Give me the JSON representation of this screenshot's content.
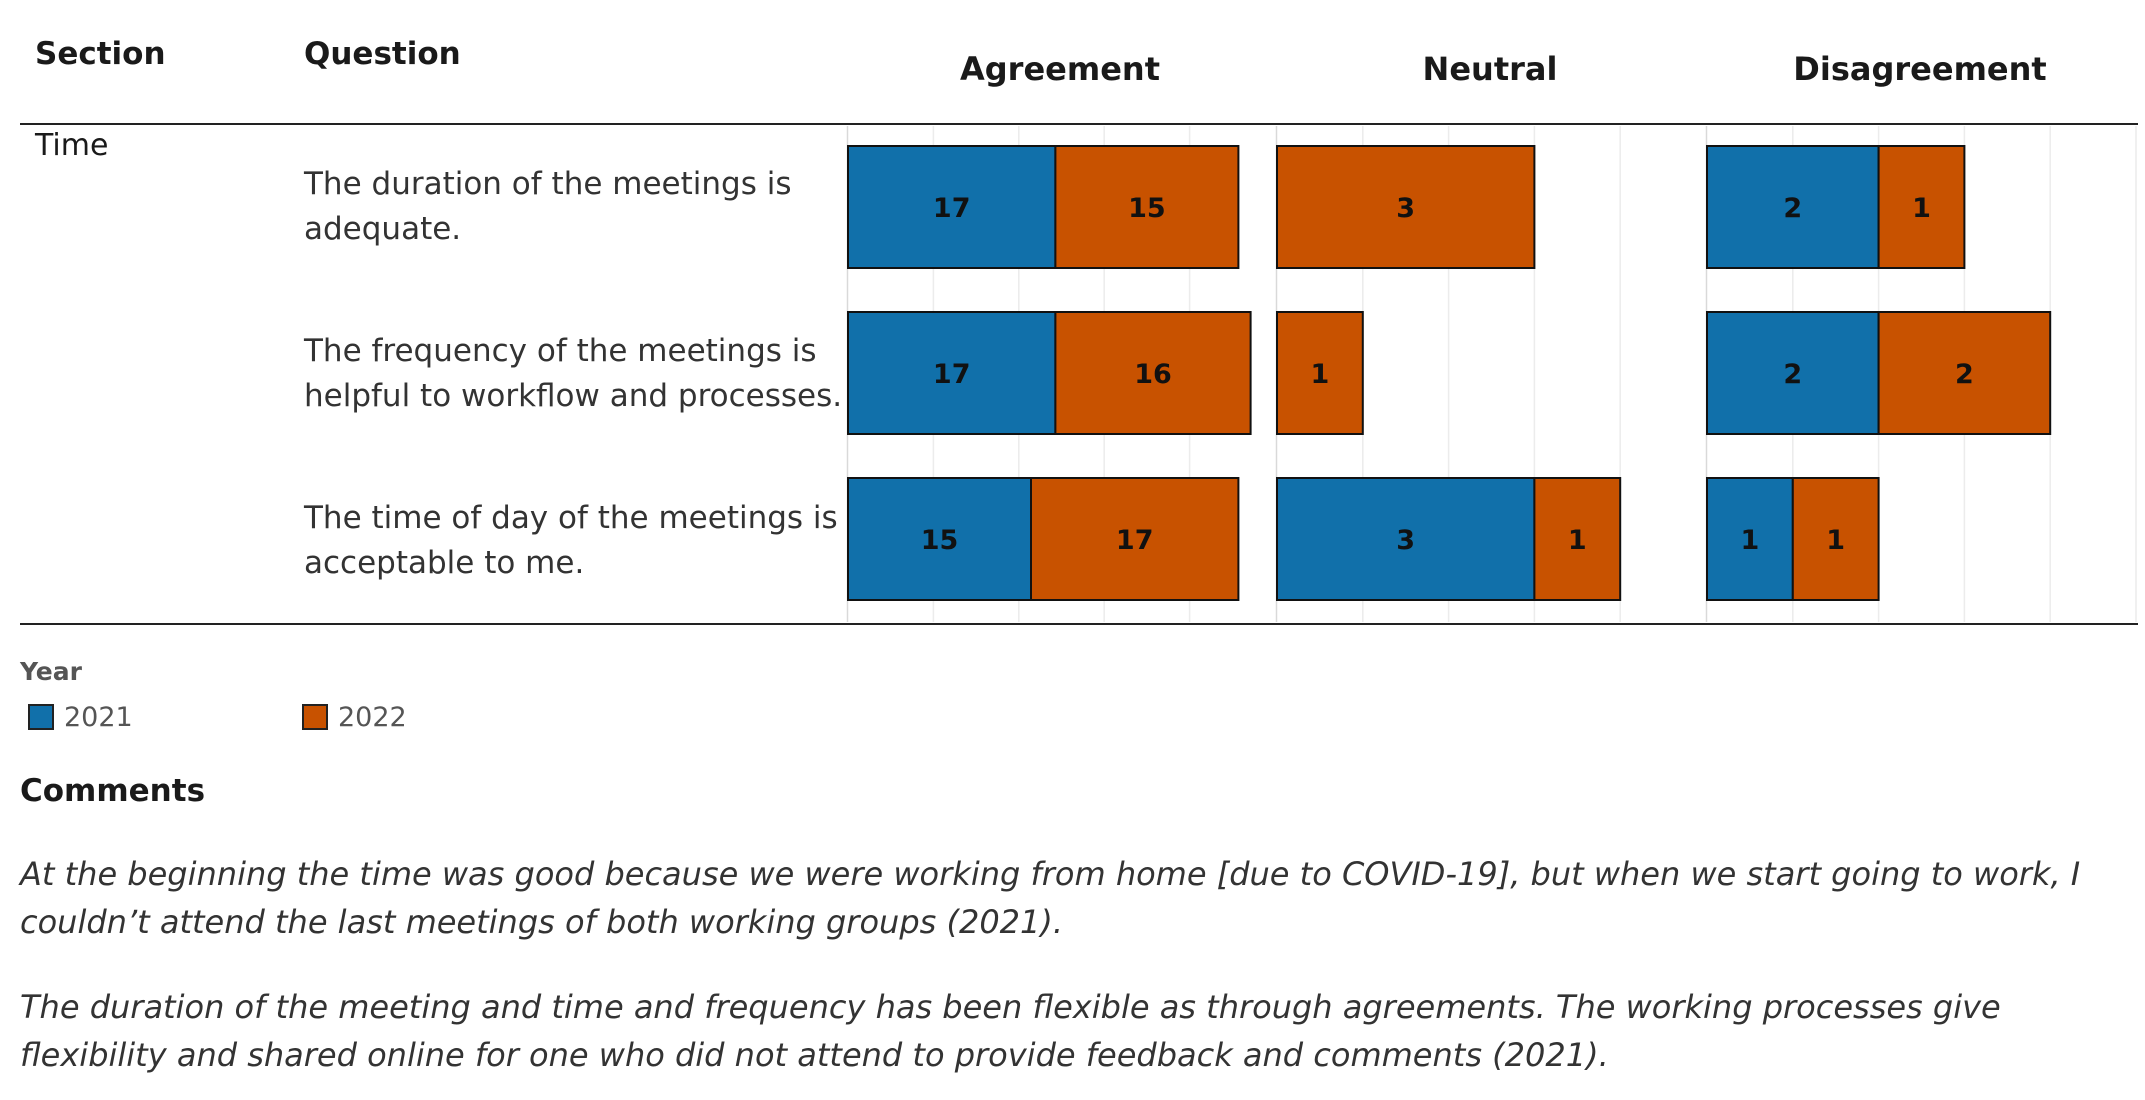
{
  "headers": {
    "section": "Section",
    "question": "Question"
  },
  "section_label": "Time",
  "legend": {
    "title": "Year",
    "items": [
      {
        "label": "2021",
        "color": "#1170aa"
      },
      {
        "label": "2022",
        "color": "#c85200"
      }
    ]
  },
  "comments": {
    "title": "Comments",
    "items": [
      "At the beginning the time was good because we were working from home [due to COVID-19], but when we start going to work, I couldn’t attend the last meetings of both working  groups (2021).",
      "The duration of the meeting and time and frequency has been flexible as through agreements. The working processes give flexibility and shared online for one who did not attend to provide feedback and comments (2021)."
    ]
  },
  "chart_data": {
    "type": "bar",
    "orientation": "horizontal",
    "stacked": true,
    "panels": [
      "Agreement",
      "Neutral",
      "Disagreement"
    ],
    "categories": [
      "The duration of the meetings is adequate.",
      "The frequency of the meetings is helpful to workflow and processes.",
      "The time of day of the meetings is acceptable to me."
    ],
    "series": [
      {
        "name": "2021",
        "color": "#1170aa",
        "values": {
          "Agreement": [
            17,
            17,
            15
          ],
          "Neutral": [
            0,
            0,
            3
          ],
          "Disagreement": [
            2,
            2,
            1
          ]
        }
      },
      {
        "name": "2022",
        "color": "#c85200",
        "values": {
          "Agreement": [
            15,
            16,
            17
          ],
          "Neutral": [
            3,
            1,
            1
          ],
          "Disagreement": [
            1,
            2,
            1
          ]
        }
      }
    ],
    "xlim": {
      "Agreement": [
        0,
        35
      ],
      "Neutral": [
        0,
        5
      ],
      "Disagreement": [
        0,
        5
      ]
    },
    "gridlines": true
  }
}
